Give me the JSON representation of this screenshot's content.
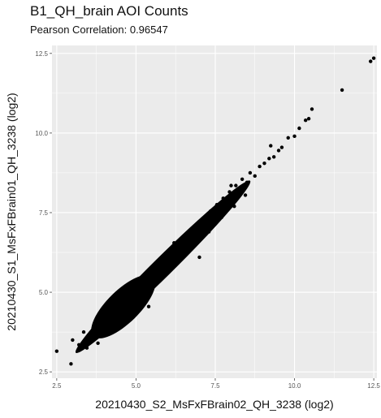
{
  "chart_data": {
    "type": "scatter",
    "title": "B1_QH_brain AOI Counts",
    "subtitle": "Pearson Correlation: 0.96547",
    "xlabel": "20210430_S2_MsFxFBrain02_QH_3238 (log2)",
    "ylabel": "20210430_S1_MsFxFBrain01_QH_3238 (log2)",
    "xlim": [
      2.35,
      12.6
    ],
    "ylim": [
      2.3,
      12.75
    ],
    "x_ticks": [
      2.5,
      5.0,
      7.5,
      10.0,
      12.5
    ],
    "x_tick_labels": [
      "2.5",
      "5.0",
      "7.5",
      "10.0",
      "12.5"
    ],
    "y_ticks": [
      2.5,
      5.0,
      7.5,
      10.0,
      12.5
    ],
    "y_tick_labels": [
      "2.5",
      "5.0",
      "7.5",
      "10.0",
      "12.5"
    ],
    "grid": true,
    "background_color": "#ebebeb",
    "grid_color": "#ffffff",
    "point_color": "#000000",
    "series": [
      {
        "name": "",
        "x": [
          2.5,
          2.95,
          3.2,
          3.3,
          3.45,
          3.5,
          3.6,
          3.7,
          3.75,
          3.85,
          3.9,
          4.0,
          4.05,
          4.1,
          4.2,
          4.25,
          4.35,
          4.45,
          4.55,
          4.6,
          4.7,
          4.8,
          4.9,
          5.0,
          5.05,
          5.15,
          5.25,
          5.3,
          5.45,
          5.55,
          5.6,
          5.75,
          5.85,
          5.95,
          6.05,
          6.15,
          6.25,
          6.35,
          6.45,
          6.55,
          6.65,
          6.75,
          6.85,
          6.95,
          7.05,
          7.15,
          7.25,
          7.35,
          7.45,
          7.55,
          7.65,
          7.75,
          7.85,
          7.95,
          8.05,
          8.15,
          8.25,
          8.35,
          8.5,
          8.6,
          8.75,
          8.9,
          9.05,
          9.2,
          9.35,
          9.5,
          9.6,
          9.8,
          10.0,
          10.15,
          10.35,
          10.45,
          10.55,
          11.5,
          12.4,
          12.5,
          3.0,
          3.35,
          3.55,
          3.8,
          4.15,
          4.4,
          4.65,
          5.1,
          5.4,
          5.7,
          6.1,
          6.5,
          6.9,
          7.3,
          7.7,
          8.1,
          8.45,
          5.4,
          9.25,
          4.3,
          7.0,
          6.2,
          8.0
        ],
        "y": [
          3.15,
          2.75,
          3.35,
          3.35,
          3.25,
          3.6,
          3.45,
          3.55,
          3.95,
          3.65,
          4.1,
          3.85,
          4.05,
          4.35,
          4.0,
          4.4,
          4.2,
          4.6,
          4.45,
          4.8,
          4.7,
          4.95,
          4.85,
          5.1,
          5.25,
          5.0,
          5.45,
          5.2,
          5.6,
          5.4,
          5.85,
          5.7,
          6.0,
          5.9,
          6.15,
          6.3,
          6.2,
          6.55,
          6.4,
          6.75,
          6.6,
          6.95,
          6.8,
          7.15,
          7.0,
          7.35,
          7.2,
          7.55,
          7.4,
          7.75,
          7.6,
          7.95,
          7.8,
          8.15,
          8.0,
          8.35,
          8.2,
          8.55,
          8.45,
          8.75,
          8.65,
          8.95,
          9.05,
          9.2,
          9.25,
          9.45,
          9.55,
          9.85,
          9.9,
          10.15,
          10.4,
          10.45,
          10.75,
          11.35,
          12.25,
          12.35,
          3.5,
          3.75,
          3.7,
          3.4,
          3.95,
          4.1,
          4.35,
          4.7,
          5.05,
          5.45,
          5.75,
          6.15,
          6.55,
          6.9,
          7.35,
          7.7,
          8.05,
          4.55,
          9.6,
          4.75,
          6.1,
          6.55,
          8.35
        ],
        "dense_band_start": [
          3.1,
          3.1
        ],
        "dense_band_end": [
          8.6,
          8.5
        ]
      }
    ]
  }
}
